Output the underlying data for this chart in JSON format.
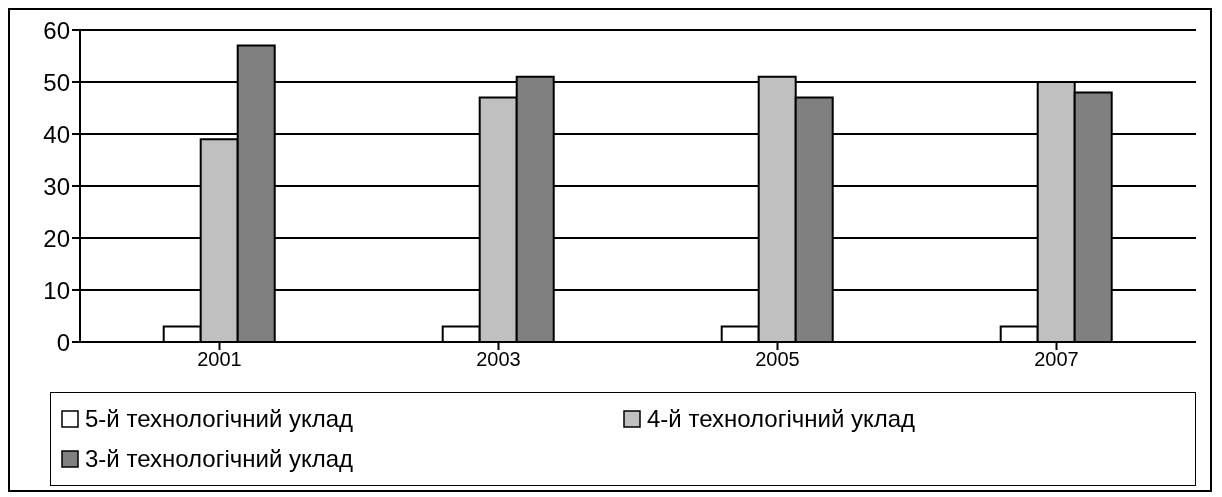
{
  "chart_data": {
    "type": "bar",
    "categories": [
      "2001",
      "2003",
      "2005",
      "2007"
    ],
    "series": [
      {
        "name": "5-й технологічний уклад",
        "color": "#ffffff",
        "values": [
          3,
          3,
          3,
          3
        ]
      },
      {
        "name": "4-й технологічний уклад",
        "color": "#c0c0c0",
        "values": [
          39,
          47,
          51,
          50
        ]
      },
      {
        "name": "3-й технологічний уклад",
        "color": "#808080",
        "values": [
          57,
          51,
          47,
          48
        ]
      }
    ],
    "ylim": [
      0,
      60
    ],
    "yticks": [
      0,
      10,
      20,
      30,
      40,
      50,
      60
    ],
    "grid": "y",
    "legend": "bottom"
  }
}
